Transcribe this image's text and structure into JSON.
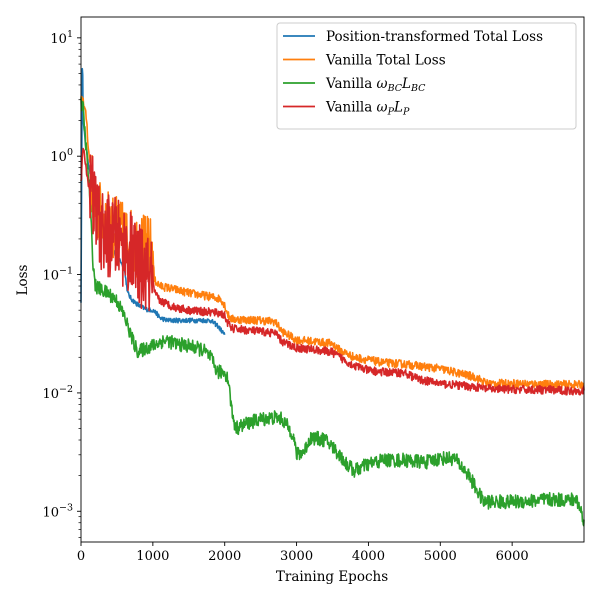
{
  "chart_data": {
    "type": "line",
    "title": "",
    "xlabel": "Training Epochs",
    "ylabel": "Loss",
    "xlim": [
      0,
      7000
    ],
    "ylim": [
      0.00055,
      15
    ],
    "yscale": "log",
    "grid": false,
    "legend_position": "top-right",
    "x_ticks": [
      {
        "value": 0,
        "label": "0"
      },
      {
        "value": 1000,
        "label": "1000"
      },
      {
        "value": 2000,
        "label": "2000"
      },
      {
        "value": 3000,
        "label": "3000"
      },
      {
        "value": 4000,
        "label": "4000"
      },
      {
        "value": 5000,
        "label": "5000"
      },
      {
        "value": 6000,
        "label": "6000"
      }
    ],
    "y_ticks": [
      {
        "value": 10,
        "base": "10",
        "exp": "1"
      },
      {
        "value": 1,
        "base": "10",
        "exp": "0"
      },
      {
        "value": 0.1,
        "base": "10",
        "exp": "−1"
      },
      {
        "value": 0.01,
        "base": "10",
        "exp": "−2"
      },
      {
        "value": 0.001,
        "base": "10",
        "exp": "−3"
      }
    ],
    "series": [
      {
        "name": "Position-transformed Total Loss",
        "color": "#1f77b4",
        "legend_parts": [
          {
            "t": "Position-transformed Total Loss"
          }
        ],
        "points": [
          [
            0,
            0.06
          ],
          [
            20,
            9.5
          ],
          [
            30,
            2.0
          ],
          [
            60,
            1.3
          ],
          [
            100,
            0.9
          ],
          [
            150,
            0.6
          ],
          [
            200,
            0.45
          ],
          [
            250,
            0.33
          ],
          [
            300,
            0.26
          ],
          [
            350,
            0.22
          ],
          [
            400,
            0.19
          ],
          [
            450,
            0.16
          ],
          [
            500,
            0.14
          ],
          [
            550,
            0.13
          ],
          [
            600,
            0.115
          ],
          [
            650,
            0.07
          ],
          [
            700,
            0.062
          ],
          [
            800,
            0.055
          ],
          [
            900,
            0.051
          ],
          [
            1000,
            0.05
          ],
          [
            1050,
            0.047
          ],
          [
            1100,
            0.043
          ],
          [
            1200,
            0.041
          ],
          [
            1500,
            0.041
          ],
          [
            1800,
            0.041
          ],
          [
            1900,
            0.037
          ],
          [
            2000,
            0.031
          ]
        ],
        "noise": 0.02
      },
      {
        "name": "Vanilla Total Loss",
        "color": "#ff7f0e",
        "legend_parts": [
          {
            "t": "Vanilla Total Loss"
          }
        ],
        "points": [
          [
            0,
            3.0
          ],
          [
            30,
            3.0
          ],
          [
            80,
            2.0
          ],
          [
            100,
            1.2
          ],
          [
            150,
            0.6
          ],
          [
            200,
            0.35
          ],
          [
            300,
            0.3
          ],
          [
            500,
            0.24
          ],
          [
            700,
            0.19
          ],
          [
            900,
            0.17
          ],
          [
            1000,
            0.16
          ],
          [
            1020,
            0.09
          ],
          [
            1100,
            0.08
          ],
          [
            1300,
            0.075
          ],
          [
            1500,
            0.07
          ],
          [
            1800,
            0.065
          ],
          [
            1950,
            0.062
          ],
          [
            2000,
            0.055
          ],
          [
            2050,
            0.045
          ],
          [
            2100,
            0.042
          ],
          [
            2500,
            0.041
          ],
          [
            2700,
            0.04
          ],
          [
            2800,
            0.033
          ],
          [
            3000,
            0.028
          ],
          [
            3300,
            0.027
          ],
          [
            3500,
            0.026
          ],
          [
            3600,
            0.023
          ],
          [
            3800,
            0.02
          ],
          [
            4000,
            0.019
          ],
          [
            4200,
            0.018
          ],
          [
            4500,
            0.0175
          ],
          [
            5000,
            0.016
          ],
          [
            5500,
            0.0135
          ],
          [
            5650,
            0.012
          ],
          [
            6000,
            0.012
          ],
          [
            6500,
            0.0118
          ],
          [
            7000,
            0.0117
          ]
        ],
        "noise": 0.035,
        "noisy_until": 1000,
        "noisy_amp": 0.28
      },
      {
        "name": "Vanilla ωBCLBC",
        "color": "#2ca02c",
        "legend_parts": [
          {
            "t": "Vanilla "
          },
          {
            "t": "ω",
            "i": true
          },
          {
            "t": "BC",
            "sub": true
          },
          {
            "t": "L",
            "i": true
          },
          {
            "t": "BC",
            "sub": true
          }
        ],
        "points": [
          [
            0,
            2.8
          ],
          [
            30,
            2.5
          ],
          [
            80,
            1.0
          ],
          [
            120,
            0.5
          ],
          [
            150,
            0.2
          ],
          [
            170,
            0.12
          ],
          [
            200,
            0.08
          ],
          [
            300,
            0.073
          ],
          [
            400,
            0.068
          ],
          [
            500,
            0.06
          ],
          [
            600,
            0.045
          ],
          [
            700,
            0.03
          ],
          [
            750,
            0.025
          ],
          [
            800,
            0.022
          ],
          [
            900,
            0.024
          ],
          [
            1000,
            0.025
          ],
          [
            1100,
            0.027
          ],
          [
            1200,
            0.028
          ],
          [
            1300,
            0.026
          ],
          [
            1500,
            0.025
          ],
          [
            1700,
            0.023
          ],
          [
            1800,
            0.02
          ],
          [
            1900,
            0.015
          ],
          [
            2000,
            0.015
          ],
          [
            2050,
            0.013
          ],
          [
            2100,
            0.007
          ],
          [
            2150,
            0.005
          ],
          [
            2300,
            0.0055
          ],
          [
            2500,
            0.006
          ],
          [
            2700,
            0.0062
          ],
          [
            2800,
            0.006
          ],
          [
            2950,
            0.0045
          ],
          [
            3000,
            0.003
          ],
          [
            3100,
            0.0032
          ],
          [
            3200,
            0.0042
          ],
          [
            3400,
            0.004
          ],
          [
            3500,
            0.0035
          ],
          [
            3700,
            0.0025
          ],
          [
            3800,
            0.0022
          ],
          [
            4000,
            0.0025
          ],
          [
            4200,
            0.0027
          ],
          [
            4500,
            0.0027
          ],
          [
            4800,
            0.0026
          ],
          [
            5000,
            0.0028
          ],
          [
            5200,
            0.0028
          ],
          [
            5400,
            0.002
          ],
          [
            5600,
            0.0012
          ],
          [
            5700,
            0.0012
          ],
          [
            6000,
            0.0012
          ],
          [
            6500,
            0.00125
          ],
          [
            6900,
            0.00125
          ],
          [
            7000,
            0.00085
          ]
        ],
        "noise": 0.06
      },
      {
        "name": "Vanilla ωPLP",
        "color": "#d62728",
        "legend_parts": [
          {
            "t": "Vanilla "
          },
          {
            "t": "ω",
            "i": true
          },
          {
            "t": "P",
            "sub": true
          },
          {
            "t": "L",
            "i": true
          },
          {
            "t": "P",
            "sub": true
          }
        ],
        "points": [
          [
            0,
            0.6
          ],
          [
            30,
            1.2
          ],
          [
            100,
            0.6
          ],
          [
            150,
            0.5
          ],
          [
            200,
            0.35
          ],
          [
            300,
            0.22
          ],
          [
            500,
            0.2
          ],
          [
            700,
            0.15
          ],
          [
            900,
            0.1
          ],
          [
            1000,
            0.09
          ],
          [
            1020,
            0.07
          ],
          [
            1100,
            0.06
          ],
          [
            1300,
            0.053
          ],
          [
            1500,
            0.05
          ],
          [
            1800,
            0.048
          ],
          [
            1950,
            0.047
          ],
          [
            2000,
            0.045
          ],
          [
            2050,
            0.038
          ],
          [
            2100,
            0.035
          ],
          [
            2500,
            0.033
          ],
          [
            2700,
            0.032
          ],
          [
            2800,
            0.027
          ],
          [
            3000,
            0.024
          ],
          [
            3300,
            0.023
          ],
          [
            3500,
            0.022
          ],
          [
            3600,
            0.02
          ],
          [
            3800,
            0.017
          ],
          [
            4000,
            0.0155
          ],
          [
            4200,
            0.015
          ],
          [
            4500,
            0.0148
          ],
          [
            4700,
            0.013
          ],
          [
            5000,
            0.012
          ],
          [
            5500,
            0.0112
          ],
          [
            5650,
            0.0108
          ],
          [
            6000,
            0.0107
          ],
          [
            6500,
            0.0106
          ],
          [
            6800,
            0.0104
          ],
          [
            7000,
            0.0105
          ]
        ],
        "noise": 0.035,
        "noisy_until": 1000,
        "noisy_amp": 0.35
      }
    ]
  }
}
